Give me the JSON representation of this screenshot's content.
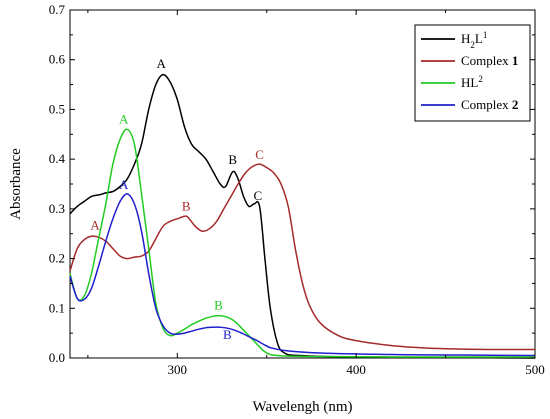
{
  "chart_data": {
    "type": "line",
    "xlabel": "Wavelengh (nm)",
    "ylabel": "Absorbance",
    "xlim": [
      240,
      500
    ],
    "ylim": [
      0,
      0.7
    ],
    "xticks": [
      300,
      400,
      500
    ],
    "yticks": [
      0.0,
      0.1,
      0.2,
      0.3,
      0.4,
      0.5,
      0.6,
      0.7
    ],
    "grid": false,
    "legend_position": "top-right",
    "series": [
      {
        "name": "H2L1",
        "legend_label": {
          "main": "H",
          "sub": "2",
          "main2": "L",
          "sup": "1"
        },
        "color": "#000000",
        "points": [
          [
            240,
            0.29
          ],
          [
            244,
            0.305
          ],
          [
            248,
            0.315
          ],
          [
            252,
            0.325
          ],
          [
            256,
            0.328
          ],
          [
            260,
            0.332
          ],
          [
            264,
            0.335
          ],
          [
            268,
            0.345
          ],
          [
            272,
            0.36
          ],
          [
            276,
            0.39
          ],
          [
            280,
            0.43
          ],
          [
            284,
            0.5
          ],
          [
            288,
            0.55
          ],
          [
            292,
            0.57
          ],
          [
            296,
            0.555
          ],
          [
            300,
            0.52
          ],
          [
            304,
            0.465
          ],
          [
            308,
            0.43
          ],
          [
            312,
            0.415
          ],
          [
            316,
            0.4
          ],
          [
            320,
            0.375
          ],
          [
            324,
            0.35
          ],
          [
            327,
            0.345
          ],
          [
            331,
            0.375
          ],
          [
            334,
            0.36
          ],
          [
            337,
            0.325
          ],
          [
            340,
            0.305
          ],
          [
            343,
            0.31
          ],
          [
            346,
            0.305
          ],
          [
            349,
            0.2
          ],
          [
            352,
            0.1
          ],
          [
            356,
            0.03
          ],
          [
            360,
            0.01
          ],
          [
            368,
            0.005
          ],
          [
            400,
            0.002
          ],
          [
            500,
            0.0
          ]
        ]
      },
      {
        "name": "Complex 1",
        "legend_label": {
          "main": "Complex ",
          "bold": "1"
        },
        "color": "#a52a2a",
        "points": [
          [
            240,
            0.175
          ],
          [
            244,
            0.22
          ],
          [
            248,
            0.238
          ],
          [
            252,
            0.245
          ],
          [
            256,
            0.243
          ],
          [
            260,
            0.235
          ],
          [
            264,
            0.22
          ],
          [
            268,
            0.205
          ],
          [
            272,
            0.2
          ],
          [
            276,
            0.203
          ],
          [
            280,
            0.205
          ],
          [
            284,
            0.215
          ],
          [
            288,
            0.24
          ],
          [
            292,
            0.265
          ],
          [
            296,
            0.275
          ],
          [
            300,
            0.28
          ],
          [
            304,
            0.285
          ],
          [
            306,
            0.283
          ],
          [
            310,
            0.265
          ],
          [
            314,
            0.255
          ],
          [
            318,
            0.26
          ],
          [
            322,
            0.275
          ],
          [
            326,
            0.3
          ],
          [
            330,
            0.325
          ],
          [
            334,
            0.35
          ],
          [
            338,
            0.372
          ],
          [
            342,
            0.385
          ],
          [
            346,
            0.39
          ],
          [
            350,
            0.383
          ],
          [
            354,
            0.372
          ],
          [
            358,
            0.35
          ],
          [
            362,
            0.305
          ],
          [
            366,
            0.22
          ],
          [
            370,
            0.15
          ],
          [
            374,
            0.105
          ],
          [
            380,
            0.07
          ],
          [
            390,
            0.045
          ],
          [
            400,
            0.035
          ],
          [
            420,
            0.025
          ],
          [
            440,
            0.02
          ],
          [
            460,
            0.018
          ],
          [
            480,
            0.017
          ],
          [
            500,
            0.017
          ]
        ]
      },
      {
        "name": "HL2",
        "legend_label": {
          "main": "HL",
          "sup": "2"
        },
        "color": "#22cc22",
        "points": [
          [
            240,
            0.17
          ],
          [
            244,
            0.12
          ],
          [
            248,
            0.125
          ],
          [
            252,
            0.17
          ],
          [
            256,
            0.24
          ],
          [
            260,
            0.31
          ],
          [
            264,
            0.39
          ],
          [
            268,
            0.44
          ],
          [
            272,
            0.46
          ],
          [
            276,
            0.43
          ],
          [
            280,
            0.33
          ],
          [
            284,
            0.22
          ],
          [
            288,
            0.11
          ],
          [
            292,
            0.06
          ],
          [
            296,
            0.045
          ],
          [
            300,
            0.05
          ],
          [
            304,
            0.058
          ],
          [
            308,
            0.067
          ],
          [
            312,
            0.074
          ],
          [
            316,
            0.08
          ],
          [
            320,
            0.084
          ],
          [
            324,
            0.085
          ],
          [
            328,
            0.082
          ],
          [
            332,
            0.074
          ],
          [
            336,
            0.06
          ],
          [
            340,
            0.045
          ],
          [
            344,
            0.03
          ],
          [
            348,
            0.015
          ],
          [
            352,
            0.007
          ],
          [
            360,
            0.004
          ],
          [
            380,
            0.003
          ],
          [
            420,
            0.002
          ],
          [
            500,
            0.002
          ]
        ]
      },
      {
        "name": "Complex 2",
        "legend_label": {
          "main": "Complex ",
          "bold": "2"
        },
        "color": "#1f1fcc",
        "points": [
          [
            240,
            0.165
          ],
          [
            244,
            0.12
          ],
          [
            248,
            0.118
          ],
          [
            252,
            0.14
          ],
          [
            256,
            0.185
          ],
          [
            260,
            0.235
          ],
          [
            264,
            0.28
          ],
          [
            268,
            0.315
          ],
          [
            272,
            0.33
          ],
          [
            276,
            0.31
          ],
          [
            280,
            0.255
          ],
          [
            284,
            0.17
          ],
          [
            288,
            0.1
          ],
          [
            292,
            0.065
          ],
          [
            296,
            0.05
          ],
          [
            300,
            0.048
          ],
          [
            304,
            0.05
          ],
          [
            308,
            0.054
          ],
          [
            312,
            0.058
          ],
          [
            316,
            0.061
          ],
          [
            320,
            0.062
          ],
          [
            324,
            0.062
          ],
          [
            328,
            0.06
          ],
          [
            332,
            0.056
          ],
          [
            336,
            0.05
          ],
          [
            340,
            0.043
          ],
          [
            344,
            0.036
          ],
          [
            348,
            0.028
          ],
          [
            352,
            0.021
          ],
          [
            360,
            0.015
          ],
          [
            380,
            0.01
          ],
          [
            420,
            0.007
          ],
          [
            460,
            0.006
          ],
          [
            500,
            0.005
          ]
        ]
      }
    ],
    "annotations": [
      {
        "text": "A",
        "x": 291,
        "y": 0.583,
        "color": "#000000"
      },
      {
        "text": "B",
        "x": 331,
        "y": 0.39,
        "color": "#000000"
      },
      {
        "text": "C",
        "x": 345,
        "y": 0.318,
        "color": "#000000"
      },
      {
        "text": "A",
        "x": 254,
        "y": 0.258,
        "color": "#a52a2a"
      },
      {
        "text": "B",
        "x": 305,
        "y": 0.297,
        "color": "#a52a2a"
      },
      {
        "text": "C",
        "x": 346,
        "y": 0.4,
        "color": "#a52a2a"
      },
      {
        "text": "A",
        "x": 270,
        "y": 0.472,
        "color": "#22cc22"
      },
      {
        "text": "B",
        "x": 323,
        "y": 0.098,
        "color": "#22cc22"
      },
      {
        "text": "A",
        "x": 270,
        "y": 0.34,
        "color": "#1f1fcc"
      },
      {
        "text": "B",
        "x": 328,
        "y": 0.038,
        "color": "#1f1fcc"
      }
    ]
  }
}
